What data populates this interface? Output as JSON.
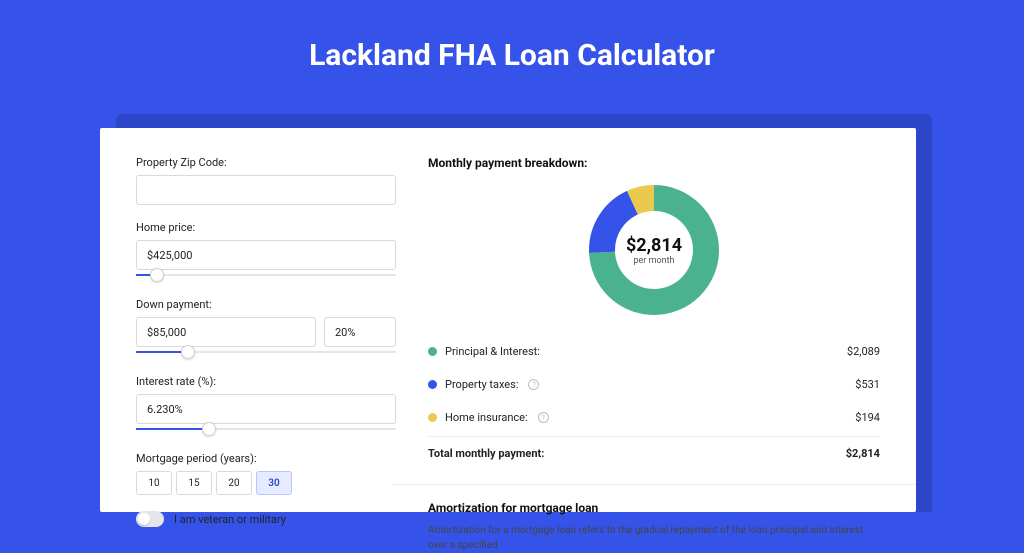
{
  "page": {
    "title": "Lackland FHA Loan Calculator"
  },
  "theme": {
    "page_bg": "#3553e8",
    "shadow_bg": "#2d46c9",
    "card_bg": "#ffffff",
    "accent": "#3553e8"
  },
  "form": {
    "zip": {
      "label": "Property Zip Code:",
      "value": ""
    },
    "home_price": {
      "label": "Home price:",
      "value": "$425,000",
      "slider_pct": 8
    },
    "down_payment": {
      "label": "Down payment:",
      "amount": "$85,000",
      "percent": "20%",
      "slider_pct": 20
    },
    "interest_rate": {
      "label": "Interest rate (%):",
      "value": "6.230%",
      "slider_pct": 28
    },
    "mortgage_period": {
      "label": "Mortgage period (years):",
      "options": [
        "10",
        "15",
        "20",
        "30"
      ],
      "selected": "30"
    },
    "veteran": {
      "label": "I am veteran or military",
      "checked": false
    }
  },
  "breakdown": {
    "title": "Monthly payment breakdown:",
    "center": {
      "amount": "$2,814",
      "sub": "per month"
    },
    "items": [
      {
        "label": "Principal & Interest:",
        "value": "$2,089",
        "color": "#4bb28f",
        "pct": 74.2,
        "info": false
      },
      {
        "label": "Property taxes:",
        "value": "$531",
        "color": "#3553e8",
        "pct": 18.9,
        "info": true
      },
      {
        "label": "Home insurance:",
        "value": "$194",
        "color": "#eac94f",
        "pct": 6.9,
        "info": true
      }
    ],
    "total": {
      "label": "Total monthly payment:",
      "value": "$2,814"
    },
    "donut": {
      "radius": 52,
      "stroke_width": 26
    }
  },
  "amortization": {
    "title": "Amortization for mortgage loan",
    "text": "Amortization for a mortgage loan refers to the gradual repayment of the loan principal and interest over a specified"
  }
}
